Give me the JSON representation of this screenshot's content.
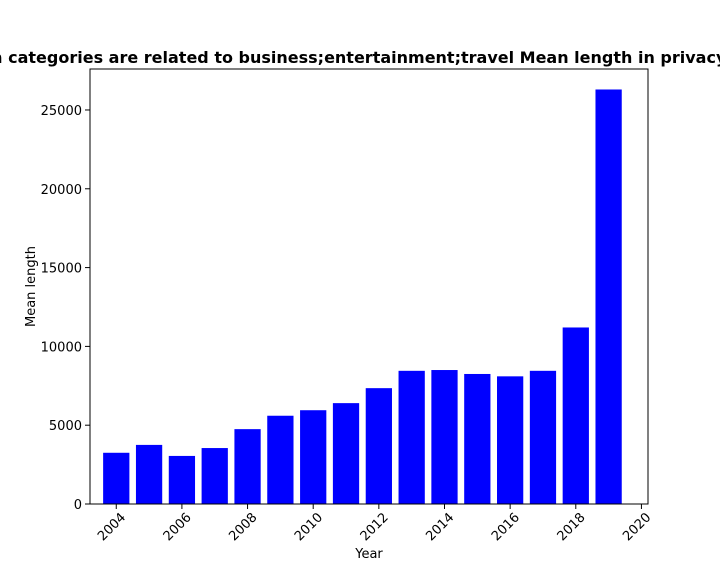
{
  "chart_data": {
    "type": "bar",
    "title": "Apps in categories are related to business;entertainment;travel Mean length in privacy policies",
    "xlabel": "Year",
    "ylabel": "Mean length",
    "x": [
      2004,
      2005,
      2006,
      2007,
      2008,
      2009,
      2010,
      2011,
      2012,
      2013,
      2014,
      2015,
      2016,
      2017,
      2018,
      2019
    ],
    "values": [
      3250,
      3750,
      3050,
      3550,
      4750,
      5600,
      5950,
      6400,
      7350,
      8450,
      8500,
      8250,
      8100,
      8450,
      11200,
      26300
    ],
    "xlim": [
      2003.2,
      2020.2
    ],
    "ylim": [
      0,
      27600
    ],
    "xticks": [
      2004,
      2006,
      2008,
      2010,
      2012,
      2014,
      2016,
      2018,
      2020
    ],
    "yticks": [
      0,
      5000,
      10000,
      15000,
      20000,
      25000
    ],
    "bar_color": "#0000ff",
    "grid": false,
    "legend": "none"
  }
}
